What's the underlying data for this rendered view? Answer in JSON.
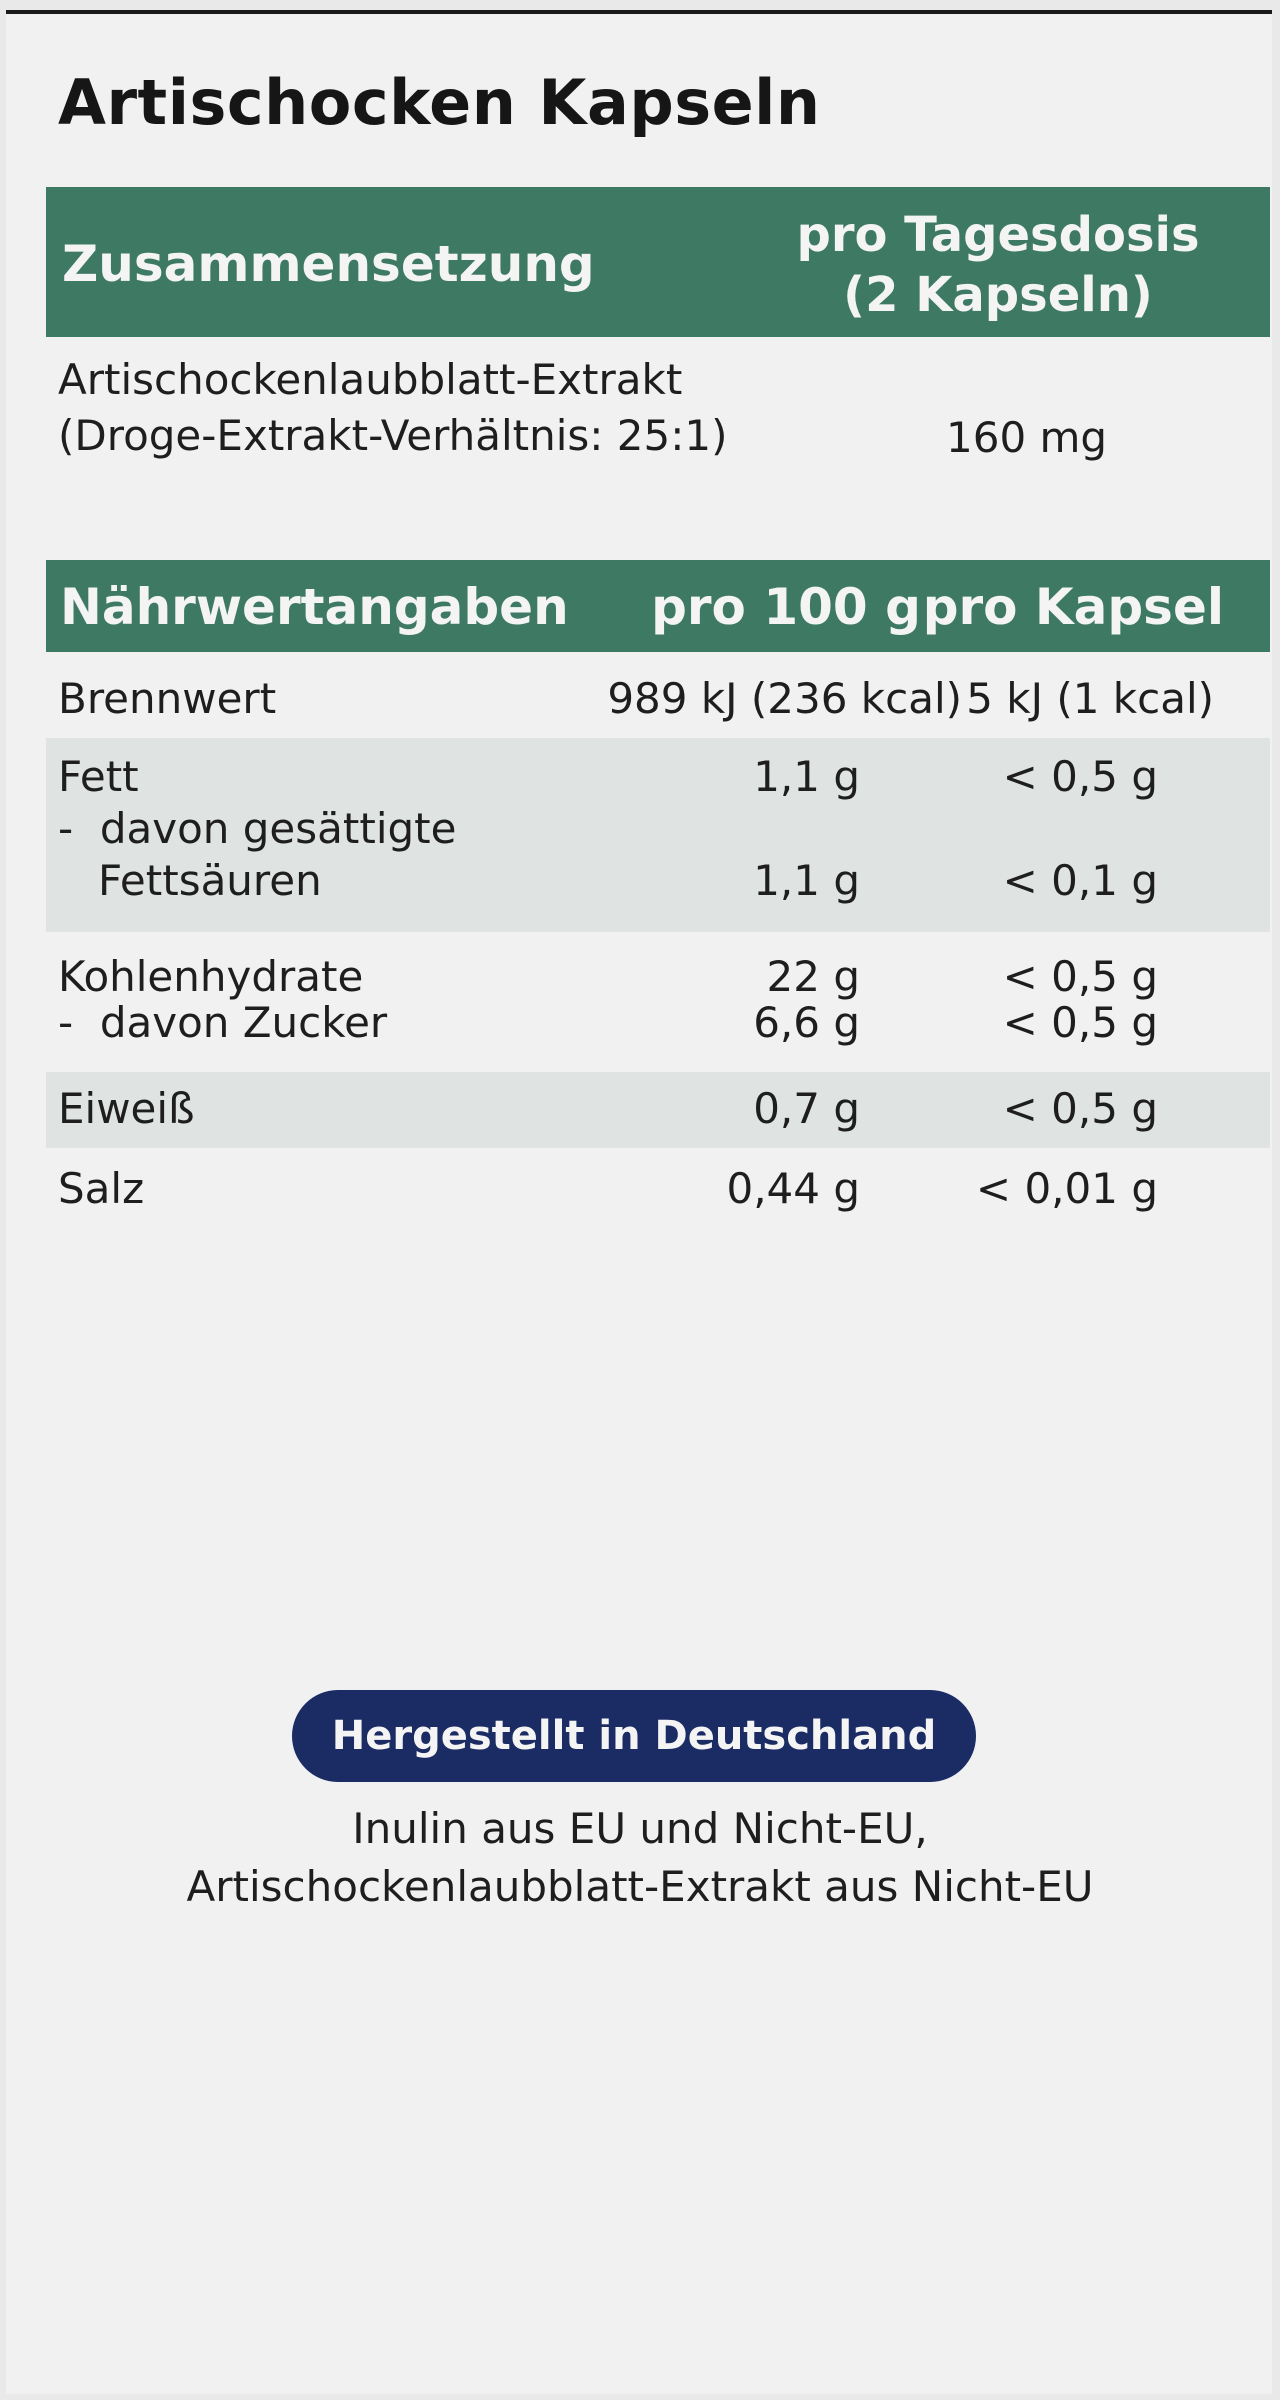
{
  "product": {
    "title": "Artischocken Kapseln"
  },
  "composition": {
    "header_left": "Zusammensetzung",
    "header_right_line1": "pro Tagesdosis",
    "header_right_line2": "(2 Kapseln)",
    "ingredient_line1": "Artischockenlaubblatt-Extrakt",
    "ingredient_line2": "(Droge-Extrakt-Verhältnis: 25:1)",
    "ingredient_value": "160 mg"
  },
  "nutrition": {
    "header_label": "Nährwertangaben",
    "header_per100": "pro 100 g",
    "header_percap": "pro Kapsel",
    "rows": [
      {
        "label": "Brennwert",
        "per100": "989 kJ (236 kcal)",
        "percap": "5 kJ (1 kcal)"
      },
      {
        "label": "Fett",
        "per100": "1,1 g",
        "percap": "< 0,5 g"
      },
      {
        "label": "-  davon gesättigte",
        "per100": "",
        "percap": ""
      },
      {
        "label": "   Fettsäuren",
        "per100": "1,1 g",
        "percap": "< 0,1 g"
      },
      {
        "label": "Kohlenhydrate",
        "per100": "22 g",
        "percap": "< 0,5 g"
      },
      {
        "label": "-  davon Zucker",
        "per100": "6,6 g",
        "percap": "< 0,5 g"
      },
      {
        "label": "Eiweiß",
        "per100": "0,7 g",
        "percap": "< 0,5 g"
      },
      {
        "label": "Salz",
        "per100": "0,44 g",
        "percap": "< 0,01 g"
      }
    ]
  },
  "origin": {
    "badge": "Hergestellt in Deutschland",
    "line1": "Inulin aus EU und Nicht-EU,",
    "line2": "Artischockenlaubblatt-Extrakt aus Nicht-EU"
  },
  "colors": {
    "header_green": "#3e7a63",
    "row_shade": "#dfe3e1",
    "badge_navy": "#1b2b63"
  }
}
